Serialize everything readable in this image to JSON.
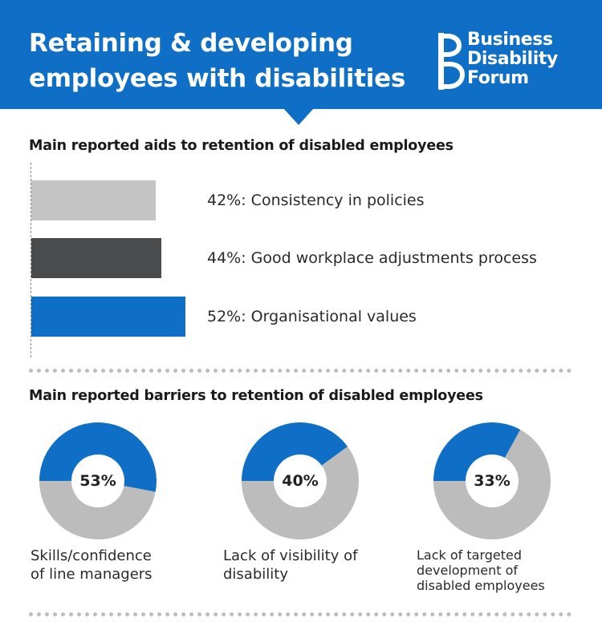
{
  "header": {
    "title_line1": "Retaining & developing",
    "title_line2": "employees with disabilities",
    "logo": {
      "line1": "Business",
      "line2": "Disability",
      "line3": "Forum"
    }
  },
  "colors": {
    "brand_blue": "#0f6fc6",
    "light_grey": "#c4c4c4",
    "dark_grey": "#4a4b4d",
    "donut_grey": "#bcbcbc"
  },
  "aids": {
    "heading": "Main reported aids to retention of disabled employees",
    "chart_data": {
      "type": "bar",
      "orientation": "horizontal",
      "title": "Main reported aids to retention of disabled employees",
      "unit": "%",
      "xlim": [
        0,
        100
      ],
      "categories": [
        "Consistency in policies",
        "Good workplace adjustments process",
        "Organisational values"
      ],
      "values": [
        42,
        44,
        52
      ],
      "labels": [
        "42%: Consistency in policies",
        "44%: Good workplace adjustments process",
        "52%: Organisational values"
      ],
      "bar_colors": [
        "#c4c4c4",
        "#4a4b4d",
        "#0f6fc6"
      ]
    }
  },
  "barriers": {
    "heading": "Main reported barriers to retention of disabled employees",
    "chart_data": {
      "type": "pie",
      "variant": "donut",
      "title": "Main reported barriers to retention of disabled employees",
      "unit": "%",
      "items": [
        {
          "value": 53,
          "pct_label": "53%",
          "label_lines": [
            "Skills/confidence",
            "of line managers"
          ]
        },
        {
          "value": 40,
          "pct_label": "40%",
          "label_lines": [
            "Lack of visibility of",
            "disability"
          ]
        },
        {
          "value": 33,
          "pct_label": "33%",
          "label_lines": [
            "Lack of targeted",
            "development of",
            "disabled employees"
          ]
        }
      ]
    }
  }
}
